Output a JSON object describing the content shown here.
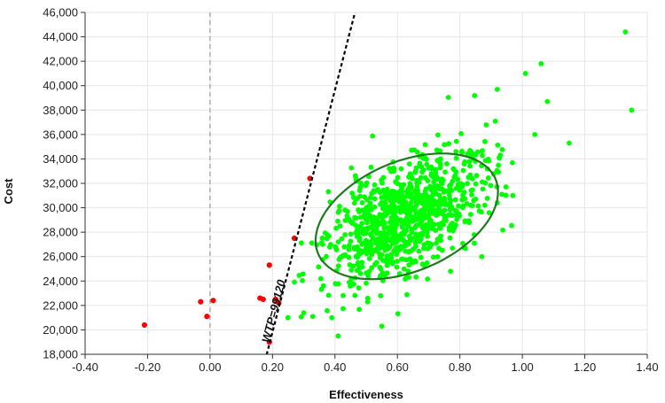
{
  "chart_data": {
    "type": "scatter",
    "title": "",
    "xlabel": "Effectiveness",
    "ylabel": "Cost",
    "xlim": [
      -0.4,
      1.4
    ],
    "ylim": [
      18000,
      46000
    ],
    "grid": true,
    "x_ticks": [
      -0.4,
      -0.2,
      0.0,
      0.2,
      0.4,
      0.6,
      0.8,
      1.0,
      1.2,
      1.4
    ],
    "x_tick_labels": [
      "-0.40",
      "-0.20",
      "0.00",
      "0.20",
      "0.40",
      "0.60",
      "0.80",
      "1.00",
      "1.20",
      "1.40"
    ],
    "y_ticks": [
      18000,
      20000,
      22000,
      24000,
      26000,
      28000,
      30000,
      32000,
      34000,
      36000,
      38000,
      40000,
      42000,
      44000,
      46000
    ],
    "y_tick_labels": [
      "18,000",
      "20,000",
      "22,000",
      "24,000",
      "26,000",
      "28,000",
      "30,000",
      "32,000",
      "34,000",
      "36,000",
      "38,000",
      "40,000",
      "42,000",
      "44,000",
      "46,000"
    ],
    "wtp_line": {
      "label": "WTP=99120",
      "slope": 99120,
      "intercept": 0
    },
    "ellipse": {
      "center": [
        0.63,
        29300
      ],
      "semi_axes_direction_1": [
        0.23,
        4500
      ],
      "semi_axes_direction_2": [
        0.18,
        -2500
      ],
      "color": "#1f7a1f"
    },
    "series": [
      {
        "color": "#ff0000",
        "points": [
          [
            -0.21,
            20400
          ],
          [
            -0.03,
            22300
          ],
          [
            -0.01,
            21100
          ],
          [
            0.01,
            22400
          ],
          [
            0.16,
            22600
          ],
          [
            0.17,
            22500
          ],
          [
            0.19,
            25300
          ],
          [
            0.19,
            19000
          ],
          [
            0.21,
            22500
          ],
          [
            0.22,
            22200
          ],
          [
            0.27,
            27500
          ],
          [
            0.32,
            32400
          ]
        ]
      },
      {
        "color": "#00ff00",
        "generated_cloud": {
          "count": 950,
          "mean": [
            0.63,
            29300
          ],
          "sd": [
            0.13,
            2700
          ],
          "correlation": 0.55,
          "seed": 7
        },
        "points": [
          [
            1.33,
            44400
          ],
          [
            1.35,
            38000
          ],
          [
            1.06,
            41800
          ],
          [
            1.01,
            41000
          ],
          [
            1.08,
            38700
          ],
          [
            1.15,
            35300
          ],
          [
            1.04,
            36000
          ],
          [
            0.92,
            39700
          ],
          [
            0.41,
            19500
          ],
          [
            0.55,
            20300
          ],
          [
            0.39,
            21000
          ],
          [
            0.3,
            21400
          ],
          [
            0.87,
            26000
          ],
          [
            0.77,
            24800
          ]
        ]
      }
    ]
  }
}
